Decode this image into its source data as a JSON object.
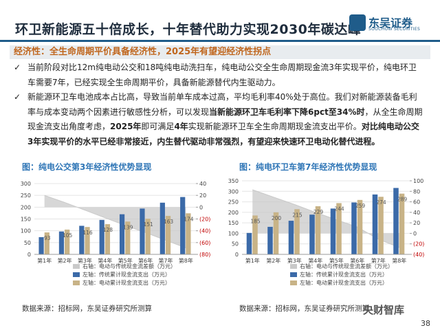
{
  "header": {
    "title": "环卫新能源五十倍成长，十年替代助力实现2030年碳达峰",
    "logo_cn": "东吴证券",
    "logo_en": "SOOCHOW SECURITIES"
  },
  "subtitle": "经济性：全生命周期平价具备经济性，2025年有望迎经济性拐点",
  "bullets": [
    {
      "segments": [
        {
          "text": "当前阶段对比12m纯电动公交和18吨纯电动洗扫车，纯电动公交全生命周期现金流3年实现平价，纯电环卫车需要7年，已经实现全生命周期平价，具备新能源替代内生驱动力。",
          "bold": false
        }
      ]
    },
    {
      "segments": [
        {
          "text": "新能源环卫车电池成本占比高，导致当前单车成本过高，平均毛利率40%处于高位。我们对新能源装备毛利率与成本变动两个因素进行敏感性分析，可以发现",
          "bold": false
        },
        {
          "text": "当新能源环卫车毛利率下降6pct至34%时",
          "bold": true
        },
        {
          "text": "，从全生命周期现金流支出角度考虑，",
          "bold": false
        },
        {
          "text": "2025年",
          "bold": true
        },
        {
          "text": "即可满足",
          "bold": false
        },
        {
          "text": "4年",
          "bold": true
        },
        {
          "text": "实现新能源环卫车全生命周期现金流支出平价。",
          "bold": false
        },
        {
          "text": "对比纯电动公交3年实现平价的水平已经非常接近，内生替代驱动非常强烈，有望迎来快速环卫电动化替代进程。",
          "bold": true
        }
      ]
    }
  ],
  "chart_data": [
    {
      "type": "bar",
      "title": "图：纯电公交第3年经济性优势显现",
      "source": "数据来源：招标网，东吴证券研究所测算",
      "categories": [
        "第1年",
        "第2年",
        "第3年",
        "第4年",
        "第5年",
        "第6年",
        "第7年",
        "第8年"
      ],
      "ylim": [
        0,
        300
      ],
      "yticks": [
        0,
        50,
        100,
        150,
        200,
        250,
        300
      ],
      "y2lim": [
        -80,
        40
      ],
      "y2ticks": [
        {
          "value": -80,
          "label": "(80)"
        },
        {
          "value": -60,
          "label": "(60)"
        },
        {
          "value": -40,
          "label": "(40)"
        },
        {
          "value": -20,
          "label": "(20)"
        },
        0,
        20,
        40
      ],
      "series": [
        {
          "name": "右轴：电动与传统现金流差额（万元）",
          "type": "area",
          "axis": "y2",
          "color": "#c9c9c9",
          "values": [
            20,
            8,
            -5,
            -18,
            -31,
            -43,
            -56,
            -69
          ]
        },
        {
          "name": "左轴：传统累计现金流支出（万元）",
          "type": "bar",
          "color": "#3b6aa8",
          "values": [
            73,
            97,
            121,
            146,
            170,
            194,
            219,
            243
          ]
        },
        {
          "name": "左轴：电动累计现金流支出（万元）",
          "type": "bar",
          "color": "#c8b387",
          "labels": true,
          "values": [
            93,
            105,
            116,
            128,
            139,
            151,
            163,
            174
          ]
        }
      ]
    },
    {
      "type": "bar",
      "title": "图：纯电环卫车第7年经济性优势显现",
      "source": "数据来源：招标网，东吴证券研究所测算",
      "categories": [
        "第1年",
        "第2年",
        "第3年",
        "第4年",
        "第5年",
        "第6年",
        "第7年",
        "第8年"
      ],
      "ylim": [
        0,
        350
      ],
      "yticks": [
        0,
        50,
        100,
        150,
        200,
        250,
        300,
        350
      ],
      "y2lim": [
        -40,
        100
      ],
      "y2ticks": [
        {
          "value": -40,
          "label": "(40)"
        },
        {
          "value": -20,
          "label": "(20)"
        },
        0,
        20,
        40,
        60,
        80,
        100
      ],
      "series": [
        {
          "name": "右轴：电动与传统现金流差额（万元）",
          "type": "area",
          "axis": "y2",
          "color": "#c9c9c9",
          "values": [
            83,
            69,
            55,
            40,
            26,
            12,
            -11,
            -27
          ]
        },
        {
          "name": "左轴：传统累计现金流支出（万元）",
          "type": "bar",
          "color": "#3b6aa8",
          "values": [
            102,
            131,
            160,
            189,
            218,
            247,
            285,
            316
          ]
        },
        {
          "name": "左轴：电动累计现金流支出（万元）",
          "type": "bar",
          "color": "#c8b387",
          "labels": true,
          "values": [
            185,
            200,
            215,
            229,
            244,
            259,
            274,
            289
          ]
        }
      ]
    }
  ],
  "page_number": "38",
  "watermark": "央财智库"
}
